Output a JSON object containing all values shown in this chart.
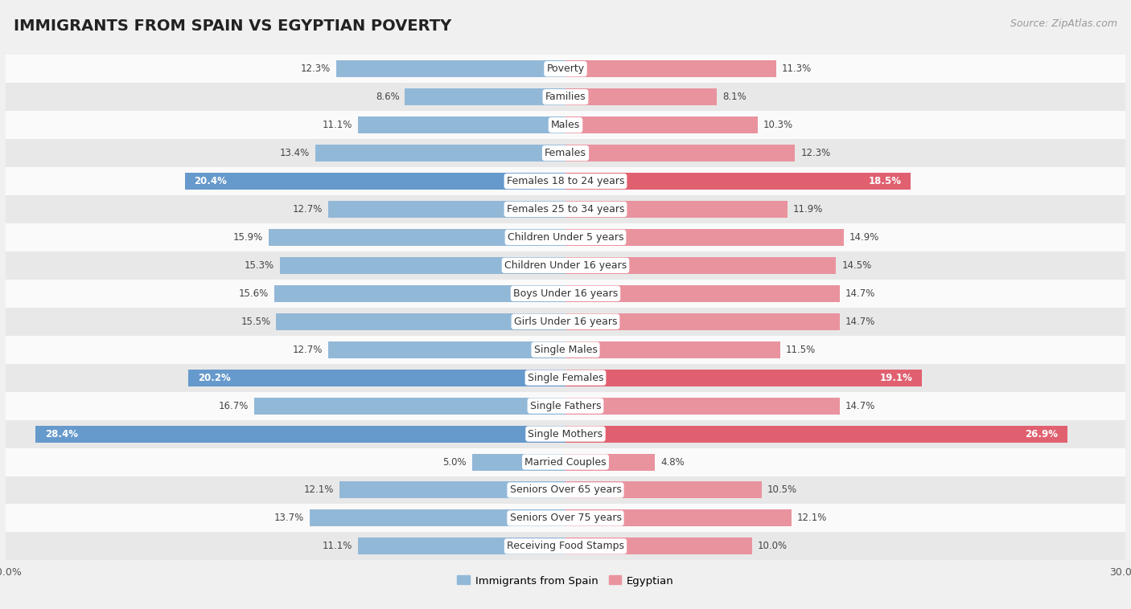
{
  "title": "IMMIGRANTS FROM SPAIN VS EGYPTIAN POVERTY",
  "source": "Source: ZipAtlas.com",
  "categories": [
    "Poverty",
    "Families",
    "Males",
    "Females",
    "Females 18 to 24 years",
    "Females 25 to 34 years",
    "Children Under 5 years",
    "Children Under 16 years",
    "Boys Under 16 years",
    "Girls Under 16 years",
    "Single Males",
    "Single Females",
    "Single Fathers",
    "Single Mothers",
    "Married Couples",
    "Seniors Over 65 years",
    "Seniors Over 75 years",
    "Receiving Food Stamps"
  ],
  "left_values": [
    12.3,
    8.6,
    11.1,
    13.4,
    20.4,
    12.7,
    15.9,
    15.3,
    15.6,
    15.5,
    12.7,
    20.2,
    16.7,
    28.4,
    5.0,
    12.1,
    13.7,
    11.1
  ],
  "right_values": [
    11.3,
    8.1,
    10.3,
    12.3,
    18.5,
    11.9,
    14.9,
    14.5,
    14.7,
    14.7,
    11.5,
    19.1,
    14.7,
    26.9,
    4.8,
    10.5,
    12.1,
    10.0
  ],
  "left_color": "#92b8d8",
  "right_color": "#e9939f",
  "left_highlight_color": "#6699cc",
  "right_highlight_color": "#e06070",
  "highlight_rows": [
    4,
    11,
    13
  ],
  "left_label": "Immigrants from Spain",
  "right_label": "Egyptian",
  "x_max": 30.0,
  "background_color": "#f0f0f0",
  "row_bg_light": "#fafafa",
  "row_bg_dark": "#e8e8e8",
  "title_fontsize": 14,
  "source_fontsize": 9,
  "bar_height": 0.6,
  "label_fontsize": 9,
  "value_fontsize": 8.5
}
